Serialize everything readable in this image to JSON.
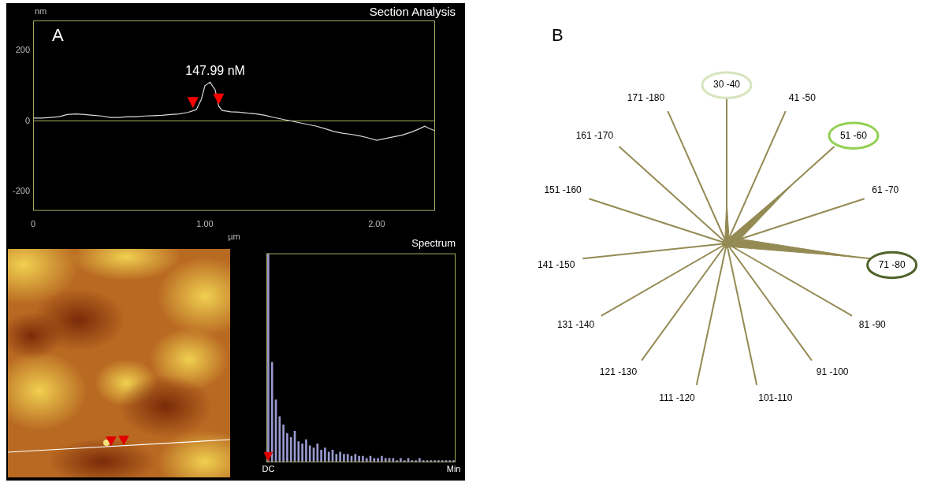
{
  "chart_data": [
    {
      "panel": "A",
      "type": "line",
      "title": "Section Analysis",
      "x_label": "µm",
      "y_label": "nm",
      "x": [
        0,
        0.05,
        0.1,
        0.15,
        0.2,
        0.25,
        0.3,
        0.35,
        0.4,
        0.45,
        0.5,
        0.55,
        0.6,
        0.65,
        0.7,
        0.75,
        0.8,
        0.85,
        0.9,
        0.95,
        0.98,
        1.0,
        1.03,
        1.06,
        1.08,
        1.1,
        1.15,
        1.2,
        1.25,
        1.3,
        1.35,
        1.4,
        1.45,
        1.5,
        1.55,
        1.6,
        1.65,
        1.7,
        1.75,
        1.8,
        1.85,
        1.9,
        1.95,
        2.0,
        2.05,
        2.1,
        2.15,
        2.2,
        2.25,
        2.28,
        2.3,
        2.34
      ],
      "values": [
        8,
        8,
        10,
        12,
        18,
        20,
        18,
        16,
        14,
        10,
        10,
        12,
        12,
        14,
        15,
        16,
        18,
        20,
        24,
        32,
        62,
        100,
        110,
        88,
        42,
        30,
        26,
        25,
        22,
        20,
        16,
        10,
        5,
        0,
        -5,
        -10,
        -15,
        -22,
        -30,
        -35,
        -38,
        -42,
        -48,
        -55,
        -50,
        -45,
        -40,
        -32,
        -22,
        -15,
        -20,
        -28
      ],
      "color": "#d9d9d9",
      "xlim": [
        0,
        2.34
      ],
      "xticks": [
        0,
        {
          "value": 1,
          "label": "1.00"
        },
        {
          "value": 2,
          "label": "2.00"
        }
      ],
      "ylim": [
        -255,
        285
      ],
      "yticks": [
        -200,
        0,
        200
      ],
      "grid": false,
      "annotations": [
        {
          "text": "147.99 nM",
          "x": [
            0.93,
            1.08
          ],
          "color": "#ff0000"
        }
      ]
    },
    {
      "panel": "A",
      "type": "bar",
      "title": "Spectrum",
      "categories": [
        "DC",
        null,
        null,
        null,
        null,
        null,
        null,
        null,
        null,
        null,
        null,
        null,
        null,
        null,
        null,
        null,
        null,
        null,
        null,
        null,
        null,
        null,
        null,
        null,
        null,
        null,
        null,
        null,
        null,
        null,
        null,
        null,
        null,
        null,
        null,
        null,
        null,
        null,
        null,
        null,
        null,
        null,
        null,
        null,
        null,
        null,
        null,
        null,
        null,
        "Min"
      ],
      "values": [
        100,
        48,
        30,
        22,
        18,
        14,
        12,
        15,
        10,
        9,
        11,
        8,
        7,
        9,
        6,
        7,
        5,
        6,
        4,
        5,
        4,
        4,
        3,
        4,
        3,
        3,
        2,
        3,
        2,
        2,
        3,
        2,
        2,
        2,
        1,
        2,
        1,
        2,
        1,
        1,
        2,
        1,
        1,
        1,
        1,
        1,
        1,
        1,
        1,
        1
      ],
      "color": "#9a9ad0",
      "ylim": [
        0,
        100
      ],
      "tick_labels": "x",
      "grid": false
    },
    {
      "panel": "B",
      "type": "radar",
      "categories": [
        "30 -40",
        "41 -50",
        "51 -60",
        "61 -70",
        "71 -80",
        "81 -90",
        "91 -100",
        "101-110",
        "111 -120",
        "121 -130",
        "131 -140",
        "141 -150",
        "151 -160",
        "161 -170",
        "171 -180"
      ],
      "values": [
        30,
        4,
        62,
        10,
        90,
        5,
        3,
        3,
        3,
        3,
        3,
        3,
        3,
        3,
        3
      ],
      "color": "#948a54",
      "ylim": [
        0,
        100
      ],
      "tick_labels": "x",
      "grid": false,
      "highlights": [
        {
          "category": "30 -40",
          "color": "#d7e4bd"
        },
        {
          "category": "51 -60",
          "color": "#92d050"
        },
        {
          "category": "71 -80",
          "color": "#4f6228"
        }
      ]
    }
  ]
}
